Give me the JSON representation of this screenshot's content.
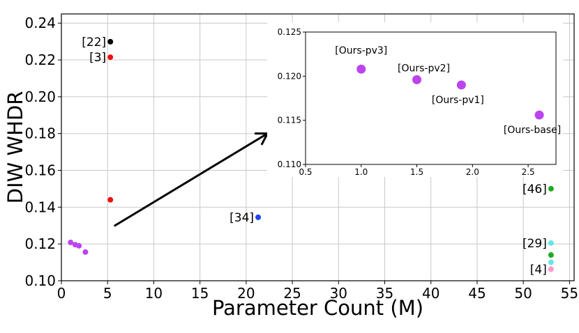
{
  "chart_data": [
    {
      "type": "scatter",
      "title": "",
      "xlabel": "Parameter Count (M)",
      "ylabel": "DIW WHDR",
      "xlim": [
        0,
        55.5
      ],
      "ylim": [
        0.1,
        0.245
      ],
      "xticks": [
        "0",
        "5",
        "10",
        "15",
        "20",
        "25",
        "30",
        "35",
        "40",
        "45",
        "50",
        "55"
      ],
      "yticks": [
        "0.10",
        "0.12",
        "0.14",
        "0.16",
        "0.18",
        "0.20",
        "0.22",
        "0.24"
      ],
      "grid": true,
      "points": [
        {
          "x": 5.3,
          "y": 0.2299,
          "label": "[22]",
          "color": "#000000"
        },
        {
          "x": 5.3,
          "y": 0.2215,
          "label": "[3]",
          "color": "#ee1111"
        },
        {
          "x": 5.3,
          "y": 0.144,
          "label": "",
          "color": "#ee1111"
        },
        {
          "x": 21.3,
          "y": 0.1345,
          "label": "[34]",
          "color": "#2244ee"
        },
        {
          "x": 53.0,
          "y": 0.15,
          "label": "[46]",
          "color": "#22aa22"
        },
        {
          "x": 53.0,
          "y": 0.1205,
          "label": "[29]",
          "color": "#66e6e6"
        },
        {
          "x": 53.0,
          "y": 0.114,
          "label": "",
          "color": "#22aa22"
        },
        {
          "x": 53.0,
          "y": 0.11,
          "label": "",
          "color": "#66e6e6"
        },
        {
          "x": 53.0,
          "y": 0.1063,
          "label": "[4]",
          "color": "#ff99cc"
        },
        {
          "x": 1.0,
          "y": 0.1208,
          "label": "",
          "color": "#bb44ee"
        },
        {
          "x": 1.5,
          "y": 0.1196,
          "label": "",
          "color": "#bb44ee"
        },
        {
          "x": 1.9,
          "y": 0.119,
          "label": "",
          "color": "#bb44ee"
        },
        {
          "x": 2.6,
          "y": 0.1156,
          "label": "",
          "color": "#bb44ee"
        }
      ],
      "annotation": {
        "type": "arrow",
        "from": {
          "x": 5.8,
          "y": 0.13
        },
        "to": {
          "x": 22.3,
          "y": 0.18
        }
      }
    },
    {
      "type": "scatter",
      "title": "",
      "xlabel": "",
      "ylabel": "",
      "xlim": [
        0.5,
        2.75
      ],
      "ylim": [
        0.11,
        0.125
      ],
      "xticks": [
        "0.5",
        "1.0",
        "1.5",
        "2.0",
        "2.5"
      ],
      "yticks": [
        "0.110",
        "0.115",
        "0.120",
        "0.125"
      ],
      "grid": false,
      "points": [
        {
          "x": 1.0,
          "y": 0.1208,
          "label": "[Ours-pv3]",
          "color": "#bb44ee"
        },
        {
          "x": 1.5,
          "y": 0.1196,
          "label": "[Ours-pv2]",
          "color": "#bb44ee"
        },
        {
          "x": 1.9,
          "y": 0.119,
          "label": "[Ours-pv1]",
          "color": "#bb44ee"
        },
        {
          "x": 2.6,
          "y": 0.1156,
          "label": "[Ours-base]",
          "color": "#bb44ee"
        }
      ]
    }
  ]
}
